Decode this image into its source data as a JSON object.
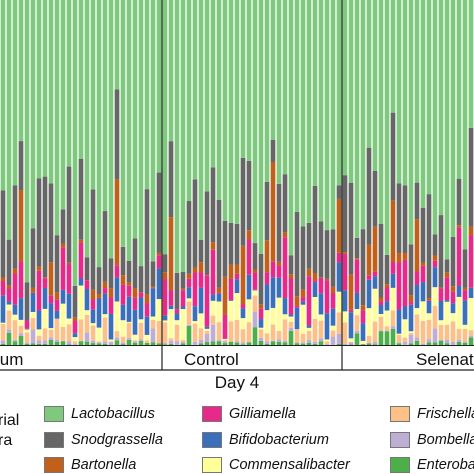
{
  "chart_data": {
    "type": "bar",
    "stacked": true,
    "normalized": true,
    "ylim": [
      0,
      100
    ],
    "xlabel": "Day 4",
    "groups": [
      {
        "label": "ium",
        "n_samples": 27
      },
      {
        "label": "Control",
        "n_samples": 30
      },
      {
        "label": "Selenat",
        "n_samples": 22
      }
    ],
    "series_order": [
      "Lactobacillus",
      "Snodgrassella",
      "Bartonella",
      "Gilliamella",
      "Bifidobacterium",
      "Commensalibacter",
      "Frischella",
      "Bombella",
      "Enterobacteriaceae"
    ],
    "colors": {
      "Lactobacillus": "#7fc97f",
      "Snodgrassella": "#666666",
      "Bartonella": "#c0601a",
      "Gilliamella": "#e7298a",
      "Bifidobacterium": "#3a6fba",
      "Commensalibacter": "#ffff99",
      "Frischella": "#fdc086",
      "Bombella": "#beaed4",
      "Enterobacteriaceae": "#4daf4a"
    },
    "series_approx_mean_percent": {
      "Lactobacillus": 58,
      "Snodgrassella": 16,
      "Bartonella": 4,
      "Gilliamella": 6,
      "Bifidobacterium": 5,
      "Commensalibacter": 4,
      "Frischella": 4,
      "Bombella": 1.5,
      "Enterobacteriaceae": 1.5
    }
  },
  "legend": {
    "title_line1": "rial",
    "title_line2": "ra",
    "items": [
      {
        "label": "Lactobacillus",
        "color": "#7fc97f"
      },
      {
        "label": "Snodgrassella",
        "color": "#666666"
      },
      {
        "label": "Bartonella",
        "color": "#c0601a"
      },
      {
        "label": "Gilliamella",
        "color": "#e7298a"
      },
      {
        "label": "Bifidobacterium",
        "color": "#3a6fba"
      },
      {
        "label": "Commensalibacter",
        "color": "#ffff99"
      },
      {
        "label": "Frischella",
        "color": "#fdc086"
      },
      {
        "label": "Bombella",
        "color": "#beaed4"
      },
      {
        "label": "Enterobac",
        "color": "#4daf4a"
      }
    ]
  }
}
